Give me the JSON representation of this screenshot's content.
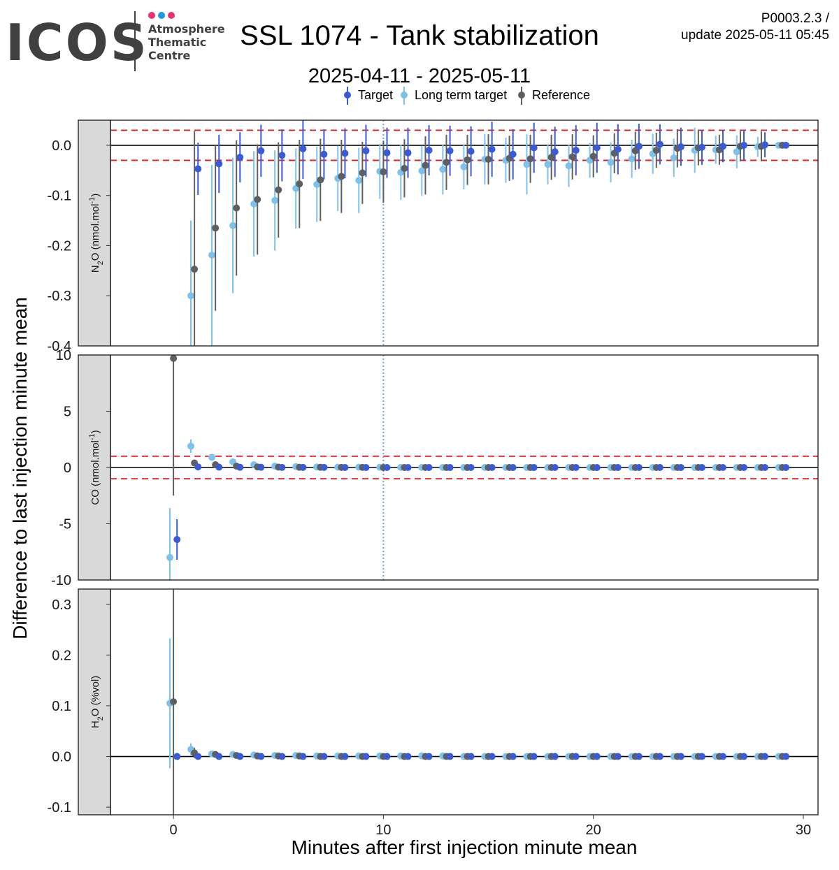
{
  "header": {
    "logo_word": "ICOS",
    "logo_sub": [
      "Atmosphere",
      "Thematic",
      "Centre"
    ],
    "title": "SSL 1074 - Tank stabilization",
    "version": "P0003.2.3 /",
    "update": "update  2025-05-11 05:45",
    "subtitle": "2025-04-11 - 2025-05-11"
  },
  "colors": {
    "target": "#3a5bd6",
    "long_term_target": "#7cc2ec",
    "reference": "#5f5f5f",
    "threshold": "#e41a1c",
    "vline": "#6a9fd8",
    "strip": "#d9d9d9",
    "logo_dots": [
      "#e8336e",
      "#1a9be0",
      "#e8336e"
    ]
  },
  "chart_data": {
    "type": "scatter",
    "xlabel": "Minutes after first injection minute mean",
    "ylabel": "Difference to last injection minute mean",
    "xlim": [
      -3,
      30.7
    ],
    "xticks": [
      0,
      10,
      20,
      30
    ],
    "vline": 10,
    "legend": {
      "placement": "top",
      "labels": [
        "Target",
        "Long term target",
        "Reference"
      ]
    },
    "panels": [
      {
        "strip": "N2O (nmol.mol-1)",
        "strip_parts": {
          "a": "N",
          "sub": "2",
          "b": "O (nmol.mol",
          "sup": "-1",
          "c": ")"
        },
        "ylim": [
          -0.4,
          0.05
        ],
        "yticks": [
          -0.4,
          -0.3,
          -0.2,
          -0.1,
          0.0
        ],
        "yticklabels": [
          "-0.4",
          "-0.3",
          "-0.2",
          "-0.1",
          "0.0"
        ],
        "thresholds": [
          0.03,
          -0.03
        ],
        "series": [
          {
            "name": "Target",
            "x": [
              1,
              2,
              3,
              4,
              5,
              6,
              7,
              8,
              9,
              10,
              11,
              12,
              13,
              14,
              15,
              16,
              17,
              18,
              19,
              20,
              21,
              22,
              23,
              24,
              25,
              26,
              27,
              28,
              29
            ],
            "y": [
              -0.047,
              -0.037,
              -0.024,
              -0.011,
              -0.02,
              -0.007,
              -0.018,
              -0.016,
              -0.011,
              -0.015,
              -0.015,
              -0.01,
              -0.011,
              -0.012,
              -0.008,
              -0.018,
              -0.005,
              -0.013,
              -0.01,
              -0.005,
              -0.008,
              -0.002,
              0.002,
              -0.003,
              -0.004,
              -0.002,
              0.0,
              0.001,
              0.0
            ],
            "err": [
              0.052,
              0.058,
              0.05,
              0.052,
              0.052,
              0.06,
              0.05,
              0.05,
              0.052,
              0.05,
              0.05,
              0.05,
              0.05,
              0.05,
              0.055,
              0.05,
              0.05,
              0.05,
              0.05,
              0.05,
              0.05,
              0.045,
              0.04,
              0.038,
              0.035,
              0.032,
              0.03,
              0.025,
              0.003
            ]
          },
          {
            "name": "Long term target",
            "x": [
              1,
              2,
              3,
              4,
              5,
              6,
              7,
              8,
              9,
              10,
              11,
              12,
              13,
              14,
              15,
              16,
              17,
              18,
              19,
              20,
              21,
              22,
              23,
              24,
              25,
              26,
              27,
              28,
              29
            ],
            "y": [
              -0.3,
              -0.219,
              -0.16,
              -0.117,
              -0.11,
              -0.086,
              -0.078,
              -0.066,
              -0.07,
              -0.052,
              -0.054,
              -0.051,
              -0.048,
              -0.043,
              -0.028,
              -0.03,
              -0.038,
              -0.038,
              -0.041,
              -0.03,
              -0.034,
              -0.027,
              -0.017,
              -0.025,
              -0.01,
              -0.009,
              -0.013,
              -0.003,
              0.0
            ],
            "err": [
              0.15,
              0.18,
              0.135,
              0.105,
              0.1,
              0.08,
              0.075,
              0.065,
              0.065,
              0.055,
              0.055,
              0.05,
              0.05,
              0.045,
              0.05,
              0.045,
              0.06,
              0.04,
              0.042,
              0.035,
              0.04,
              0.038,
              0.04,
              0.038,
              0.045,
              0.028,
              0.033,
              0.02,
              0.003
            ]
          },
          {
            "name": "Reference",
            "x": [
              1,
              2,
              3,
              4,
              5,
              6,
              7,
              8,
              9,
              10,
              11,
              12,
              13,
              14,
              15,
              16,
              17,
              18,
              19,
              20,
              21,
              22,
              23,
              24,
              25,
              26,
              27,
              28,
              29
            ],
            "y": [
              -0.247,
              -0.165,
              -0.125,
              -0.108,
              -0.089,
              -0.077,
              -0.069,
              -0.062,
              -0.055,
              -0.053,
              -0.046,
              -0.04,
              -0.034,
              -0.029,
              -0.028,
              -0.026,
              -0.027,
              -0.024,
              -0.023,
              -0.022,
              -0.016,
              -0.011,
              -0.01,
              -0.006,
              -0.005,
              -0.009,
              -0.002,
              -0.002,
              0.0
            ],
            "err": [
              0.275,
              0.165,
              0.135,
              0.11,
              0.095,
              0.088,
              0.082,
              0.073,
              0.062,
              0.062,
              0.058,
              0.058,
              0.055,
              0.05,
              0.05,
              0.045,
              0.048,
              0.045,
              0.045,
              0.042,
              0.04,
              0.038,
              0.035,
              0.038,
              0.035,
              0.03,
              0.03,
              0.03,
              0.003
            ]
          }
        ]
      },
      {
        "strip": "CO (nmol.mol-1)",
        "strip_parts": {
          "a": "CO (nmol.mol",
          "sub": "",
          "b": "",
          "sup": "-1",
          "c": ")"
        },
        "ylim": [
          -10,
          10
        ],
        "yticks": [
          -10,
          -5,
          0,
          5,
          10
        ],
        "yticklabels": [
          "-10",
          "-5",
          "0",
          "5",
          "10"
        ],
        "thresholds": [
          1,
          -1
        ],
        "series": [
          {
            "name": "Target",
            "x": [
              0,
              1,
              2,
              3,
              4,
              5,
              6,
              7,
              8,
              9,
              10,
              11,
              12,
              13,
              14,
              15,
              16,
              17,
              18,
              19,
              20,
              21,
              22,
              23,
              24,
              25,
              26,
              27,
              28,
              29
            ],
            "y": [
              -6.4,
              0.05,
              0.03,
              0.02,
              0.02,
              0.01,
              0.01,
              0.01,
              0.0,
              0.0,
              0.0,
              0.0,
              0.0,
              0.0,
              0.0,
              0.0,
              0.0,
              0.0,
              0.0,
              0.0,
              0.0,
              0.0,
              0.0,
              0.0,
              0.0,
              0.0,
              0.0,
              0.0,
              0.0,
              0.0
            ],
            "err": [
              1.8,
              0.1,
              0.05,
              0.05,
              0.05,
              0.05,
              0.05,
              0.05,
              0.05,
              0.05,
              0.05,
              0.05,
              0.05,
              0.05,
              0.05,
              0.05,
              0.05,
              0.05,
              0.05,
              0.05,
              0.05,
              0.05,
              0.05,
              0.05,
              0.05,
              0.05,
              0.05,
              0.05,
              0.05,
              0.05
            ]
          },
          {
            "name": "Long term target",
            "x": [
              0,
              1,
              2,
              3,
              4,
              5,
              6,
              7,
              8,
              9,
              10,
              11,
              12,
              13,
              14,
              15,
              16,
              17,
              18,
              19,
              20,
              21,
              22,
              23,
              24,
              25,
              26,
              27,
              28,
              29
            ],
            "y": [
              -8.0,
              1.9,
              0.9,
              0.5,
              0.25,
              0.12,
              0.08,
              0.05,
              0.03,
              0.03,
              0.02,
              0.01,
              0.01,
              0.01,
              0.0,
              0.0,
              0.0,
              0.0,
              0.0,
              0.0,
              0.0,
              0.0,
              0.0,
              0.0,
              0.0,
              0.0,
              0.0,
              0.0,
              0.0,
              0.0
            ],
            "err": [
              4.4,
              0.6,
              0.2,
              0.15,
              0.1,
              0.05,
              0.05,
              0.05,
              0.05,
              0.05,
              0.05,
              0.05,
              0.05,
              0.05,
              0.05,
              0.05,
              0.05,
              0.05,
              0.05,
              0.05,
              0.05,
              0.05,
              0.05,
              0.05,
              0.05,
              0.05,
              0.05,
              0.05,
              0.05,
              0.05
            ]
          },
          {
            "name": "Reference",
            "x": [
              0,
              1,
              2,
              3,
              4,
              5,
              6,
              7,
              8,
              9,
              10,
              11,
              12,
              13,
              14,
              15,
              16,
              17,
              18,
              19,
              20,
              21,
              22,
              23,
              24,
              25,
              26,
              27,
              28,
              29
            ],
            "y": [
              9.7,
              0.4,
              0.25,
              0.12,
              0.05,
              0.03,
              0.02,
              0.02,
              0.01,
              0.01,
              0.0,
              0.0,
              0.0,
              0.0,
              0.0,
              0.0,
              0.0,
              0.0,
              0.0,
              0.0,
              0.0,
              0.0,
              0.0,
              0.0,
              0.0,
              0.0,
              0.0,
              0.0,
              0.0,
              0.0
            ],
            "err": [
              12.2,
              0.15,
              0.1,
              0.05,
              0.05,
              0.05,
              0.05,
              0.05,
              0.05,
              0.05,
              0.05,
              0.05,
              0.05,
              0.05,
              0.05,
              0.05,
              0.05,
              0.05,
              0.05,
              0.05,
              0.05,
              0.05,
              0.05,
              0.05,
              0.05,
              0.05,
              0.05,
              0.05,
              0.05,
              0.05
            ]
          }
        ]
      },
      {
        "strip": "H2O (%vol)",
        "strip_parts": {
          "a": "H",
          "sub": "2",
          "b": "O (%vol)",
          "sup": "",
          "c": ""
        },
        "ylim": [
          -0.115,
          0.33
        ],
        "yticks": [
          -0.1,
          0.0,
          0.1,
          0.2,
          0.3
        ],
        "yticklabels": [
          "-0.1",
          "0.0",
          "0.1",
          "0.2",
          "0.3"
        ],
        "thresholds": [],
        "series": [
          {
            "name": "Target",
            "x": [
              0,
              1,
              2,
              3,
              4,
              5,
              6,
              7,
              8,
              9,
              10,
              11,
              12,
              13,
              14,
              15,
              16,
              17,
              18,
              19,
              20,
              21,
              22,
              23,
              24,
              25,
              26,
              27,
              28,
              29
            ],
            "y": [
              0.0,
              0.0,
              0.0,
              0.0,
              0.0,
              0.0,
              0.0,
              0.0,
              0.0,
              0.0,
              0.0,
              0.0,
              0.0,
              0.0,
              0.0,
              0.0,
              0.0,
              0.0,
              0.0,
              0.0,
              0.0,
              0.0,
              0.0,
              0.0,
              0.0,
              0.0,
              0.0,
              0.0,
              0.0,
              0.0
            ],
            "err": [
              0.001,
              0.001,
              0.001,
              0.001,
              0.001,
              0.001,
              0.001,
              0.001,
              0.001,
              0.001,
              0.001,
              0.001,
              0.001,
              0.001,
              0.001,
              0.001,
              0.001,
              0.001,
              0.001,
              0.001,
              0.001,
              0.001,
              0.001,
              0.001,
              0.001,
              0.001,
              0.001,
              0.001,
              0.001,
              0.001
            ]
          },
          {
            "name": "Long term target",
            "x": [
              0,
              1,
              2,
              3,
              4,
              5,
              6,
              7,
              8,
              9,
              10,
              11,
              12,
              13,
              14,
              15,
              16,
              17,
              18,
              19,
              20,
              21,
              22,
              23,
              24,
              25,
              26,
              27,
              28,
              29
            ],
            "y": [
              0.105,
              0.014,
              0.005,
              0.004,
              0.003,
              0.002,
              0.002,
              0.001,
              0.001,
              0.001,
              0.001,
              0.001,
              0.001,
              0.001,
              0.0,
              0.0,
              0.0,
              0.0,
              0.0,
              0.0,
              0.0,
              0.0,
              0.0,
              0.0,
              0.0,
              0.0,
              0.0,
              0.0,
              0.0,
              0.0
            ],
            "err": [
              0.128,
              0.012,
              0.003,
              0.003,
              0.002,
              0.002,
              0.001,
              0.001,
              0.001,
              0.001,
              0.001,
              0.001,
              0.001,
              0.001,
              0.001,
              0.001,
              0.001,
              0.001,
              0.001,
              0.001,
              0.001,
              0.001,
              0.001,
              0.001,
              0.001,
              0.001,
              0.001,
              0.001,
              0.001,
              0.001
            ]
          },
          {
            "name": "Reference",
            "x": [
              0,
              1,
              2,
              3,
              4,
              5,
              6,
              7,
              8,
              9,
              10,
              11,
              12,
              13,
              14,
              15,
              16,
              17,
              18,
              19,
              20,
              21,
              22,
              23,
              24,
              25,
              26,
              27,
              28,
              29
            ],
            "y": [
              0.108,
              0.007,
              0.004,
              0.002,
              0.001,
              0.001,
              0.001,
              0.0,
              0.0,
              0.0,
              0.0,
              0.0,
              0.0,
              0.0,
              0.0,
              0.0,
              0.0,
              0.0,
              0.0,
              0.0,
              0.0,
              0.0,
              0.0,
              0.0,
              0.0,
              0.0,
              0.0,
              0.0,
              0.0,
              0.0
            ],
            "err": [
              0.33,
              0.01,
              0.003,
              0.002,
              0.001,
              0.001,
              0.001,
              0.001,
              0.001,
              0.001,
              0.001,
              0.001,
              0.001,
              0.001,
              0.001,
              0.001,
              0.001,
              0.001,
              0.001,
              0.001,
              0.001,
              0.001,
              0.001,
              0.001,
              0.001,
              0.001,
              0.001,
              0.001,
              0.001,
              0.001
            ]
          }
        ]
      }
    ]
  }
}
